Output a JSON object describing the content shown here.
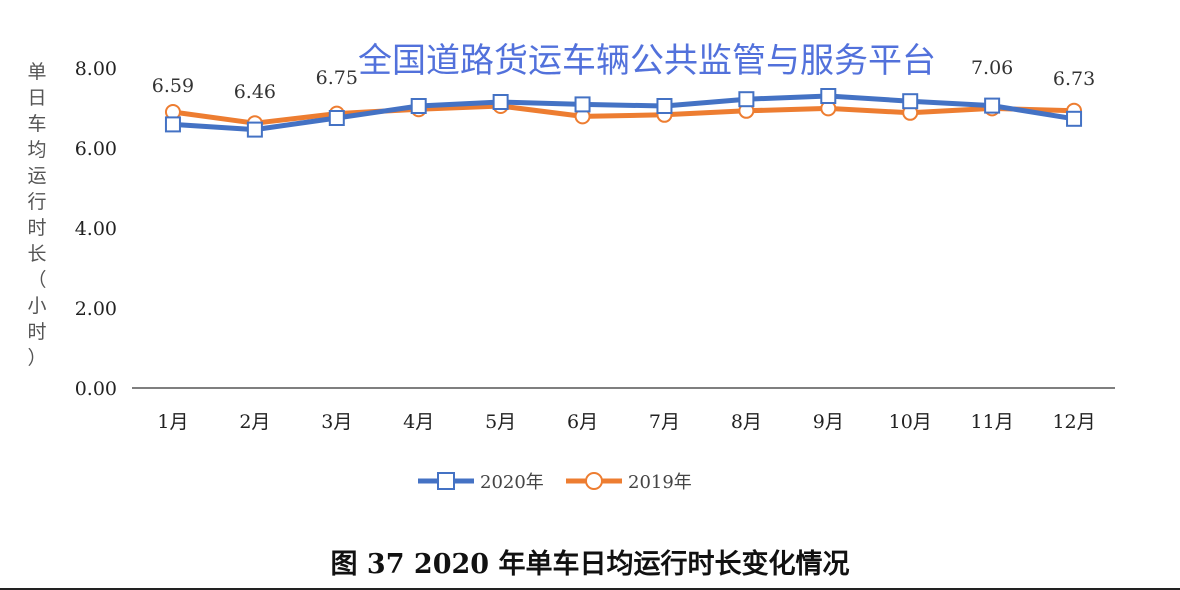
{
  "watermark": "全国道路货运车辆公共监管与服务平台",
  "caption": "图 37 2020 年单车日均运行时长变化情况",
  "colors": {
    "series_2020": "#4472c4",
    "series_2019": "#ed7d31"
  },
  "chart_data": {
    "type": "line",
    "title": "",
    "xlabel": "",
    "ylabel": "单日车均运行时长（小时）",
    "ylim": [
      0,
      8
    ],
    "yticks": [
      "0.00",
      "2.00",
      "4.00",
      "6.00",
      "8.00"
    ],
    "categories": [
      "1月",
      "2月",
      "3月",
      "4月",
      "5月",
      "6月",
      "7月",
      "8月",
      "9月",
      "10月",
      "11月",
      "12月"
    ],
    "series": [
      {
        "name": "2020年",
        "marker": "square",
        "values": [
          6.59,
          6.46,
          6.75,
          7.05,
          7.15,
          7.09,
          7.05,
          7.22,
          7.3,
          7.17,
          7.06,
          6.73
        ],
        "labels": [
          "6.59",
          "6.46",
          "6.75",
          "",
          "",
          "",
          "",
          "",
          "",
          "",
          "7.06",
          "6.73"
        ]
      },
      {
        "name": "2019年",
        "marker": "circle",
        "values": [
          6.9,
          6.62,
          6.86,
          6.97,
          7.05,
          6.79,
          6.83,
          6.93,
          6.99,
          6.88,
          6.99,
          6.93
        ]
      }
    ],
    "legend_position": "bottom",
    "grid": false
  }
}
